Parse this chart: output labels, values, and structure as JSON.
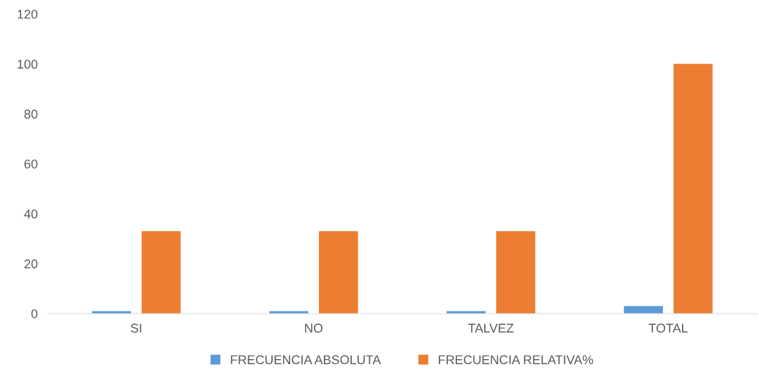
{
  "chart_data": {
    "type": "bar",
    "categories": [
      "SI",
      "NO",
      "TALVEZ",
      "TOTAL"
    ],
    "series": [
      {
        "name": "FRECUENCIA ABSOLUTA",
        "color": "#5b9bd5",
        "values": [
          1,
          1,
          1,
          3
        ]
      },
      {
        "name": "FRECUENCIA RELATIVA%",
        "color": "#ed7d31",
        "values": [
          33,
          33,
          33,
          100
        ]
      }
    ],
    "ylim": [
      0,
      120
    ],
    "yticks": [
      0,
      20,
      40,
      60,
      80,
      100,
      120
    ],
    "grid": false,
    "legend": "bottom"
  }
}
